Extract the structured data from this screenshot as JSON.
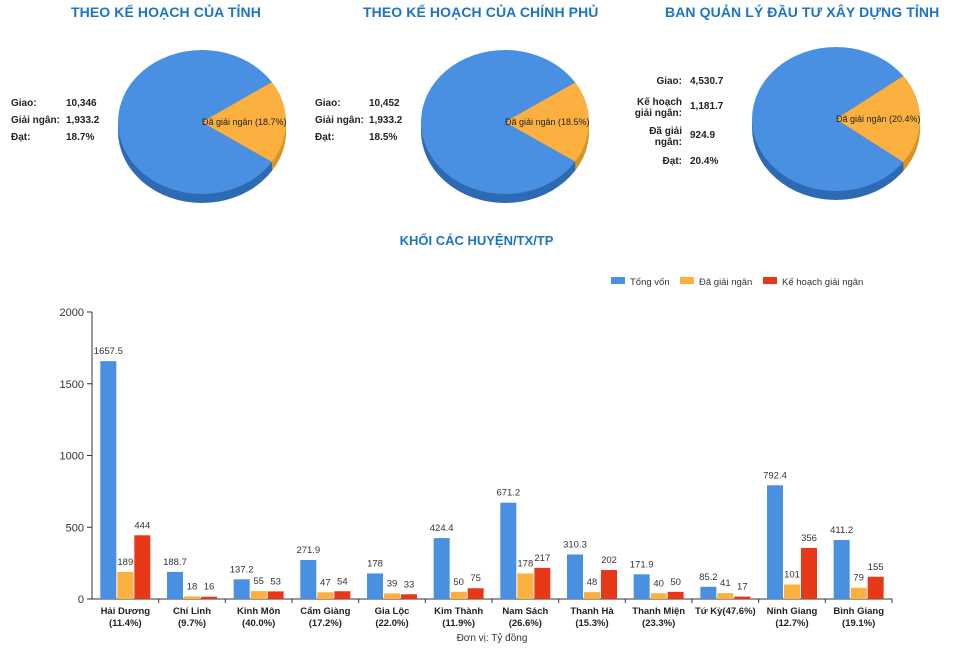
{
  "pies": [
    {
      "title": "THEO KẾ HOẠCH CỦA TỈNH",
      "info": [
        {
          "label": "Giao:",
          "value": "10,346"
        },
        {
          "label": "Giải ngân:",
          "value": "1,933.2"
        },
        {
          "label": "Đạt:",
          "value": "18.7%"
        }
      ],
      "slice_label": "Đã giải ngân (18.7%)",
      "percent": 18.7
    },
    {
      "title": "THEO KẾ HOẠCH CỦA CHÍNH PHỦ",
      "info": [
        {
          "label": "Giao:",
          "value": "10,452"
        },
        {
          "label": "Giải ngân:",
          "value": "1,933.2"
        },
        {
          "label": "Đạt:",
          "value": "18.5%"
        }
      ],
      "slice_label": "Đã giải ngân  (18.5%)",
      "percent": 18.5
    },
    {
      "title": "BAN QUẢN LÝ ĐẦU TƯ XÂY DỰNG TỈNH",
      "info": [
        {
          "label": "Giao:",
          "value": "4,530.7"
        },
        {
          "label": "Kế hoạch giải ngân:",
          "value": "1,181.7"
        },
        {
          "label": "Đã giải ngân:",
          "value": "924.9"
        },
        {
          "label": "Đạt:",
          "value": "20.4%"
        }
      ],
      "slice_label": "Đã giải ngân (20.4%)",
      "percent": 20.4
    }
  ],
  "colors": {
    "blue": "#4a90e2",
    "blue_dark": "#2c6bb4",
    "orange": "#fbb040",
    "orange_dark": "#d9931f",
    "red": "#e8381a",
    "title": "#1b74c4"
  },
  "chart_data": {
    "type": "bar",
    "title": "KHỐI CÁC HUYỆN/TX/TP",
    "xlabel": "Đơn vị: Tỷ đồng",
    "ylabel": "",
    "ylim": [
      0,
      2000
    ],
    "yticks": [
      0,
      500,
      1000,
      1500,
      2000
    ],
    "legend_position": "top-right",
    "categories": [
      {
        "name": "Hải Dương",
        "pct": "(11.4%)"
      },
      {
        "name": "Chí Linh",
        "pct": "(9.7%)"
      },
      {
        "name": "Kinh Môn",
        "pct": "(40.0%)"
      },
      {
        "name": "Cẩm Giàng",
        "pct": "(17.2%)"
      },
      {
        "name": "Gia Lộc",
        "pct": "(22.0%)"
      },
      {
        "name": "Kim Thành",
        "pct": "(11.9%)"
      },
      {
        "name": "Nam Sách",
        "pct": "(26.6%)"
      },
      {
        "name": "Thanh Hà",
        "pct": "(15.3%)"
      },
      {
        "name": "Thanh Miện",
        "pct": "(23.3%)"
      },
      {
        "name": "Tứ Kỳ(47.6%)",
        "pct": ""
      },
      {
        "name": "Ninh Giang",
        "pct": "(12.7%)"
      },
      {
        "name": "Bình Giang",
        "pct": "(19.1%)"
      }
    ],
    "series": [
      {
        "name": "Tổng vốn",
        "color": "#4a90e2",
        "values": [
          1657.5,
          188.7,
          137.2,
          271.9,
          178,
          424.4,
          671.2,
          310.3,
          171.9,
          85.2,
          792.4,
          411.2
        ]
      },
      {
        "name": "Đã giải ngân",
        "color": "#fbb040",
        "values": [
          189,
          18,
          55,
          47,
          39,
          50,
          178,
          48,
          40,
          41,
          101,
          79
        ]
      },
      {
        "name": "Kế hoạch giải ngân",
        "color": "#e8381a",
        "values": [
          444,
          16,
          53,
          54,
          33,
          75,
          217,
          202,
          50,
          17,
          356,
          155
        ]
      }
    ]
  }
}
